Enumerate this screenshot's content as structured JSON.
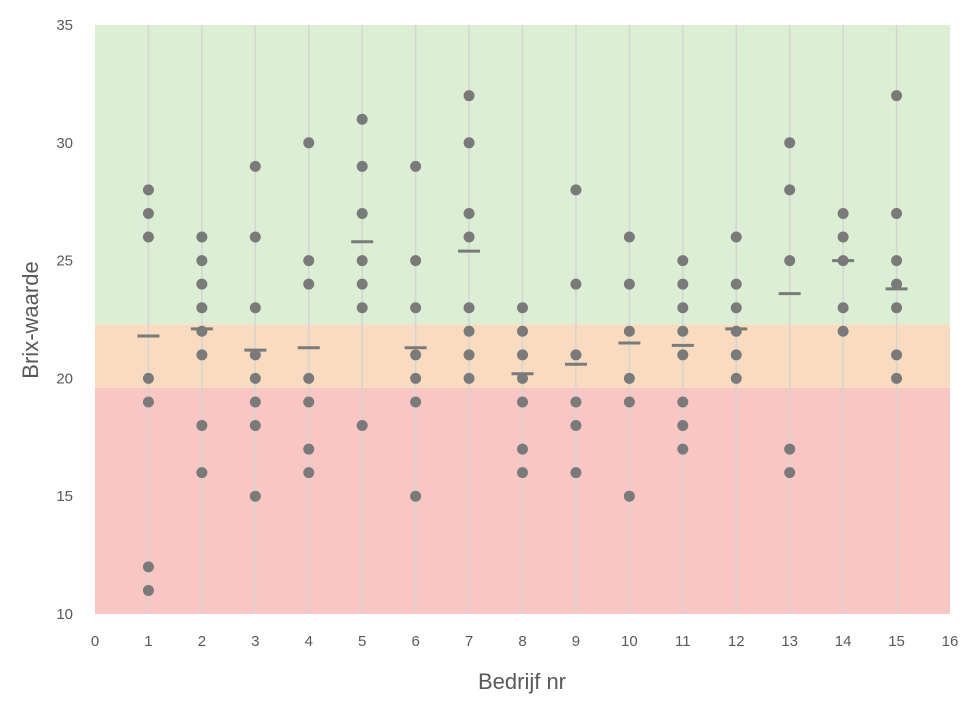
{
  "chart_data": {
    "type": "scatter",
    "title": "",
    "xlabel": "Bedrijf nr",
    "ylabel": "Brix-waarde",
    "xlim": [
      0,
      16
    ],
    "ylim": [
      10,
      35
    ],
    "xticks": [
      "0",
      "1",
      "2",
      "3",
      "4",
      "5",
      "6",
      "7",
      "8",
      "9",
      "10",
      "11",
      "12",
      "13",
      "14",
      "15",
      "16"
    ],
    "yticks": [
      "10",
      "15",
      "20",
      "25",
      "30",
      "35"
    ],
    "grid": "vertical",
    "legend": "none",
    "bands": [
      {
        "from": 10,
        "to": 19.6,
        "color": "#f9c6c4"
      },
      {
        "from": 19.6,
        "to": 22.3,
        "color": "#f9dcc0"
      },
      {
        "from": 22.3,
        "to": 35,
        "color": "#dcefd4"
      }
    ],
    "series": [
      {
        "marker": "circle",
        "color": "#7a7a7a",
        "points": [
          [
            1,
            28
          ],
          [
            1,
            27
          ],
          [
            1,
            26
          ],
          [
            1,
            20
          ],
          [
            1,
            19
          ],
          [
            1,
            12
          ],
          [
            1,
            11
          ],
          [
            2,
            26
          ],
          [
            2,
            25
          ],
          [
            2,
            24
          ],
          [
            2,
            23
          ],
          [
            2,
            22
          ],
          [
            2,
            21
          ],
          [
            2,
            18
          ],
          [
            2,
            16
          ],
          [
            3,
            29
          ],
          [
            3,
            26
          ],
          [
            3,
            23
          ],
          [
            3,
            21
          ],
          [
            3,
            20
          ],
          [
            3,
            19
          ],
          [
            3,
            18
          ],
          [
            3,
            15
          ],
          [
            4,
            30
          ],
          [
            4,
            25
          ],
          [
            4,
            24
          ],
          [
            4,
            20
          ],
          [
            4,
            19
          ],
          [
            4,
            17
          ],
          [
            4,
            16
          ],
          [
            5,
            31
          ],
          [
            5,
            29
          ],
          [
            5,
            27
          ],
          [
            5,
            25
          ],
          [
            5,
            24
          ],
          [
            5,
            23
          ],
          [
            5,
            18
          ],
          [
            6,
            29
          ],
          [
            6,
            25
          ],
          [
            6,
            23
          ],
          [
            6,
            21
          ],
          [
            6,
            20
          ],
          [
            6,
            19
          ],
          [
            6,
            15
          ],
          [
            7,
            32
          ],
          [
            7,
            30
          ],
          [
            7,
            27
          ],
          [
            7,
            26
          ],
          [
            7,
            23
          ],
          [
            7,
            22
          ],
          [
            7,
            21
          ],
          [
            7,
            20
          ],
          [
            8,
            23
          ],
          [
            8,
            22
          ],
          [
            8,
            21
          ],
          [
            8,
            20
          ],
          [
            8,
            19
          ],
          [
            8,
            17
          ],
          [
            8,
            16
          ],
          [
            9,
            28
          ],
          [
            9,
            24
          ],
          [
            9,
            21
          ],
          [
            9,
            19
          ],
          [
            9,
            18
          ],
          [
            9,
            16
          ],
          [
            10,
            26
          ],
          [
            10,
            24
          ],
          [
            10,
            22
          ],
          [
            10,
            20
          ],
          [
            10,
            19
          ],
          [
            10,
            15
          ],
          [
            11,
            25
          ],
          [
            11,
            24
          ],
          [
            11,
            23
          ],
          [
            11,
            22
          ],
          [
            11,
            21
          ],
          [
            11,
            19
          ],
          [
            11,
            18
          ],
          [
            11,
            17
          ],
          [
            12,
            26
          ],
          [
            12,
            24
          ],
          [
            12,
            23
          ],
          [
            12,
            22
          ],
          [
            12,
            21
          ],
          [
            12,
            20
          ],
          [
            13,
            30
          ],
          [
            13,
            28
          ],
          [
            13,
            25
          ],
          [
            13,
            17
          ],
          [
            13,
            16
          ],
          [
            14,
            27
          ],
          [
            14,
            26
          ],
          [
            14,
            25
          ],
          [
            14,
            23
          ],
          [
            14,
            22
          ],
          [
            15,
            32
          ],
          [
            15,
            27
          ],
          [
            15,
            25
          ],
          [
            15,
            24
          ],
          [
            15,
            23
          ],
          [
            15,
            21
          ],
          [
            15,
            20
          ]
        ]
      },
      {
        "marker": "dash",
        "color": "#7a7a7a",
        "points": [
          [
            1,
            21.8
          ],
          [
            2,
            22.1
          ],
          [
            3,
            21.2
          ],
          [
            4,
            21.3
          ],
          [
            5,
            25.8
          ],
          [
            6,
            21.3
          ],
          [
            7,
            25.4
          ],
          [
            8,
            20.2
          ],
          [
            9,
            20.6
          ],
          [
            10,
            21.5
          ],
          [
            11,
            21.4
          ],
          [
            12,
            22.1
          ],
          [
            13,
            23.6
          ],
          [
            14,
            25.0
          ],
          [
            15,
            23.8
          ]
        ]
      }
    ]
  }
}
